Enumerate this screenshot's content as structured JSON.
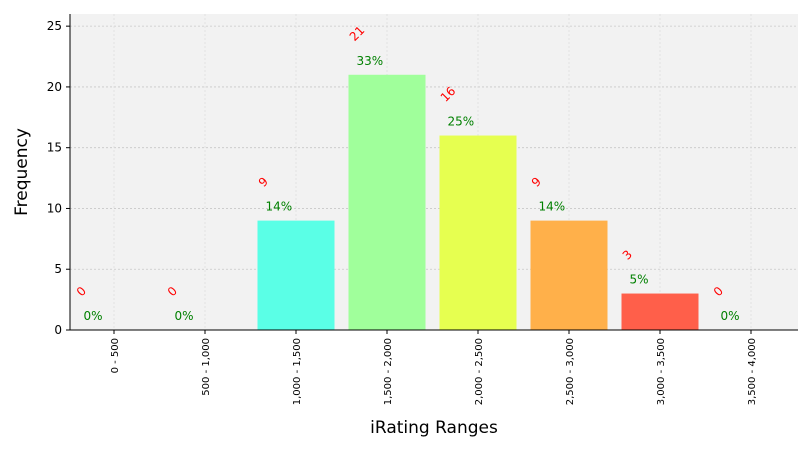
{
  "chart_data": {
    "type": "bar",
    "categories": [
      "0 - 500",
      "500 - 1,000",
      "1,000 - 1,500",
      "1,500 - 2,000",
      "2,000 - 2,500",
      "2,500 - 3,000",
      "3,000 - 3,500",
      "3,500 - 4,000"
    ],
    "values": [
      0,
      0,
      9,
      21,
      16,
      9,
      3,
      0
    ],
    "count_labels": [
      "0",
      "0",
      "9",
      "21",
      "16",
      "9",
      "3",
      "0"
    ],
    "percent_labels": [
      "0%",
      "0%",
      "14%",
      "33%",
      "25%",
      "14%",
      "5%",
      "0%"
    ],
    "bar_colors": [
      "#5a5aff",
      "#5aa0ff",
      "#5affe6",
      "#a0ff9b",
      "#e6ff50",
      "#ffb04a",
      "#ff5f4a",
      "#ff4a4a"
    ],
    "count_label_color": "#ff0000",
    "percent_label_color": "#008000",
    "plot_background": "#f2f2f2",
    "xlabel": "iRating Ranges",
    "ylabel": "Frequency",
    "ylim": [
      0,
      26
    ],
    "yticks": [
      0,
      5,
      10,
      15,
      20,
      25
    ],
    "grid": true
  }
}
